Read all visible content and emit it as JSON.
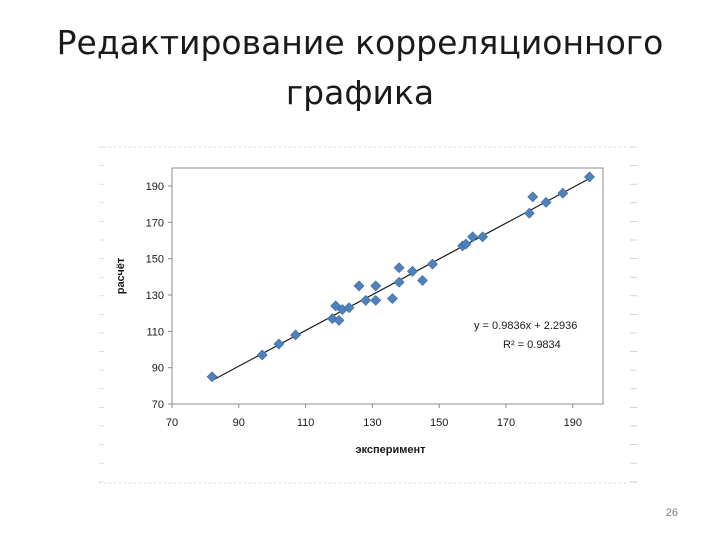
{
  "slide": {
    "title_line1": "Редактирование корреляционного",
    "title_line2": "графика",
    "page_number": "26"
  },
  "chart_data": {
    "type": "scatter",
    "xlabel": "эксперимент",
    "ylabel": "расчёт",
    "xlim": [
      70,
      200
    ],
    "ylim": [
      70,
      200
    ],
    "xticks": [
      70,
      90,
      110,
      130,
      150,
      170,
      190
    ],
    "yticks": [
      70,
      90,
      110,
      130,
      150,
      170,
      190
    ],
    "grid": false,
    "marker_color": "#4f81bd",
    "line_color": "#1a1a1a",
    "trendline": {
      "slope": 0.9836,
      "intercept": 2.2936,
      "equation": "y = 0.9836x + 2.2936",
      "r_squared": "R² = 0.9834"
    },
    "points": [
      [
        82,
        85
      ],
      [
        97,
        97
      ],
      [
        102,
        103
      ],
      [
        107,
        108
      ],
      [
        118,
        117
      ],
      [
        119,
        124
      ],
      [
        120,
        116
      ],
      [
        121,
        122
      ],
      [
        123,
        123
      ],
      [
        126,
        135
      ],
      [
        128,
        127
      ],
      [
        131,
        127
      ],
      [
        131,
        135
      ],
      [
        136,
        128
      ],
      [
        138,
        137
      ],
      [
        138,
        145
      ],
      [
        142,
        143
      ],
      [
        145,
        138
      ],
      [
        148,
        147
      ],
      [
        157,
        157
      ],
      [
        158,
        158
      ],
      [
        160,
        162
      ],
      [
        163,
        162
      ],
      [
        177,
        175
      ],
      [
        178,
        184
      ],
      [
        182,
        181
      ],
      [
        187,
        186
      ],
      [
        195,
        195
      ]
    ]
  }
}
